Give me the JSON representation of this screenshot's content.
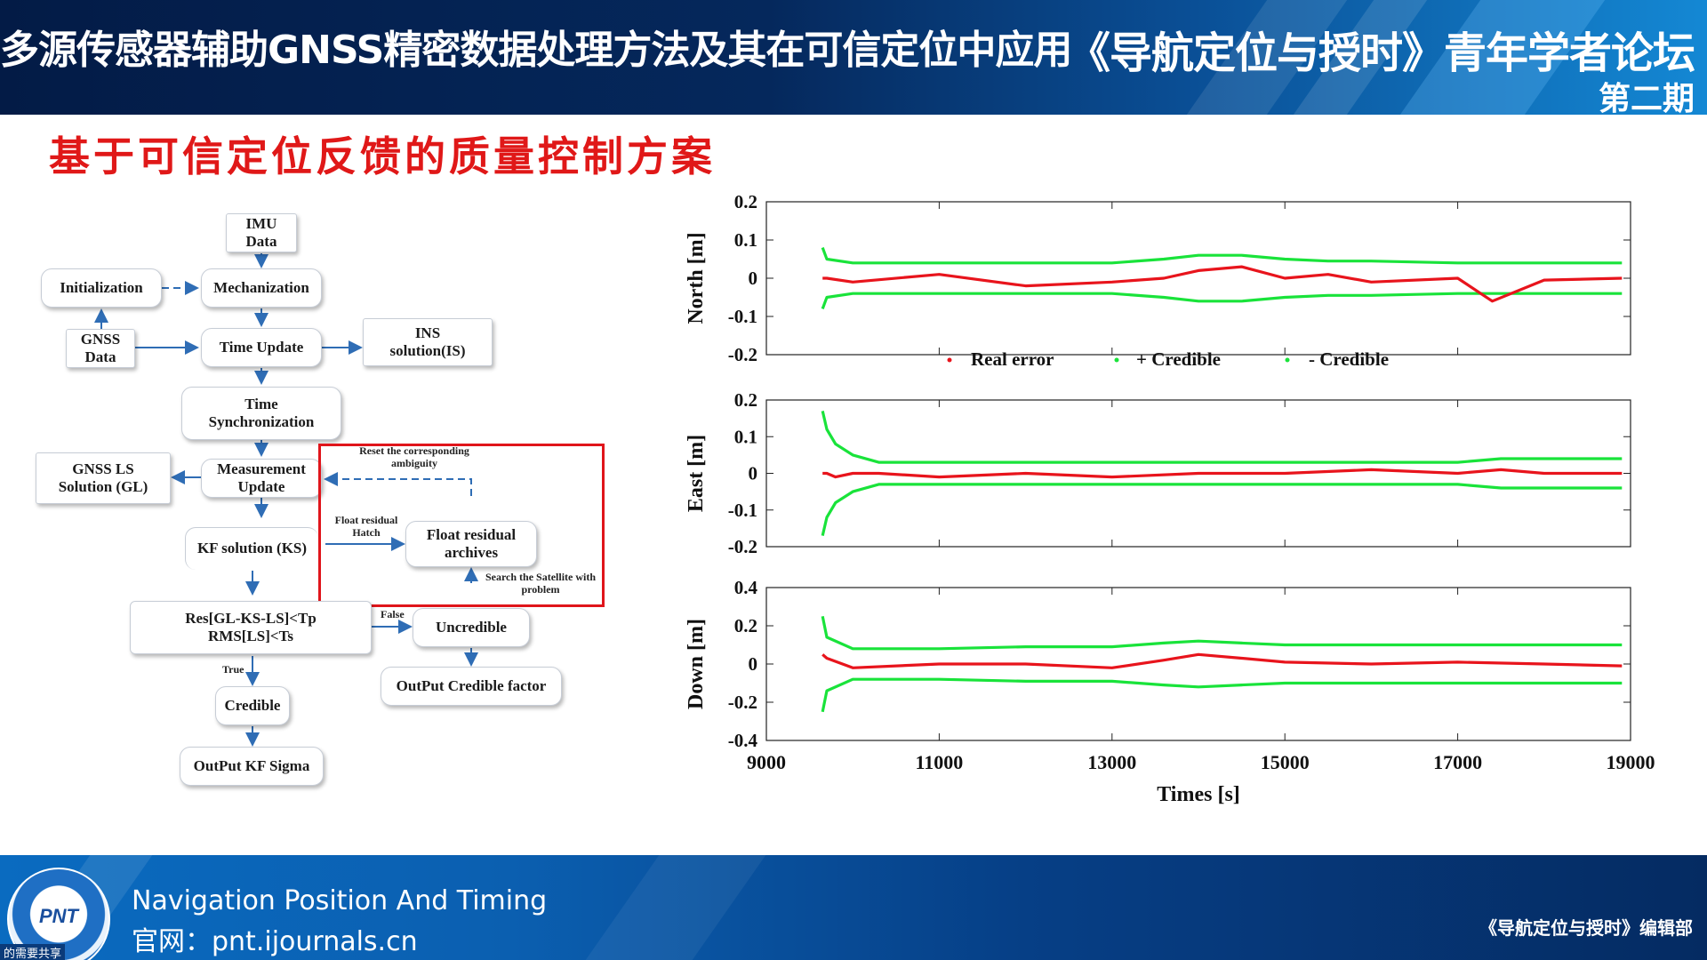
{
  "header": {
    "title": "多源传感器辅助GNSS精密数据处理方法及其在可信定位中应用",
    "forum": "《导航定位与授时》青年学者论坛",
    "issue": "第二期"
  },
  "slide": {
    "title": "基于可信定位反馈的质量控制方案"
  },
  "flowchart": {
    "imu": "IMU Data",
    "initialization": "Initialization",
    "mechanization": "Mechanization",
    "gnss_data": "GNSS Data",
    "time_update": "Time Update",
    "ins_solution": "INS solution(IS)",
    "time_sync": "Time Synchronization",
    "gnss_ls": "GNSS LS Solution (GL)",
    "measurement_update": "Measurement Update",
    "kf_solution": "KF solution (KS)",
    "float_archives": "Float residual archives",
    "float_hatch": "Float residual Hatch",
    "reset_ambiguity": "Reset the corresponding ambiguity",
    "search_satellite": "Search the Satellite with problem",
    "test": "Res[GL-KS-LS]<Tp RMS[LS]<Ts",
    "false_label": "False",
    "true_label": "True",
    "uncredible": "Uncredible",
    "output_factor": "OutPut Credible factor",
    "credible": "Credible",
    "output_sigma": "OutPut KF Sigma"
  },
  "chart_data": {
    "type": "line",
    "xlabel": "Times [s]",
    "xlim": [
      9000,
      19000
    ],
    "xticks": [
      9000,
      11000,
      13000,
      15000,
      17000,
      19000
    ],
    "xtick_labels": [
      "9000",
      "11000",
      "13000",
      "15000",
      "17000",
      "19000"
    ],
    "legend": [
      "Real error",
      "+ Credible",
      "- Credible"
    ],
    "legend_position": "between top and middle panels",
    "colors": {
      "real_error": "#e8141c",
      "credible": "#19e33a"
    },
    "grid": false,
    "panels": [
      {
        "ylabel": "North [m]",
        "ylim": [
          -0.2,
          0.2
        ],
        "yticks": [
          0.2,
          0.1,
          0,
          -0.1,
          -0.2
        ],
        "ytick_labels": [
          "0.2",
          "0.1",
          "0",
          "-0.1",
          "-0.2"
        ],
        "x": [
          9650,
          9700,
          10000,
          11000,
          12000,
          13000,
          13600,
          14000,
          14500,
          15000,
          15500,
          16000,
          17000,
          17400,
          18000,
          18900
        ],
        "real_error": [
          0.0,
          0.0,
          -0.01,
          0.01,
          -0.02,
          -0.01,
          0.0,
          0.02,
          0.03,
          0.0,
          0.01,
          -0.01,
          0.0,
          -0.06,
          -0.005,
          0.0
        ],
        "plus_credible": [
          0.08,
          0.05,
          0.04,
          0.04,
          0.04,
          0.04,
          0.05,
          0.06,
          0.06,
          0.05,
          0.045,
          0.045,
          0.04,
          0.04,
          0.04,
          0.04
        ],
        "minus_credible": [
          -0.08,
          -0.05,
          -0.04,
          -0.04,
          -0.04,
          -0.04,
          -0.05,
          -0.06,
          -0.06,
          -0.05,
          -0.045,
          -0.045,
          -0.04,
          -0.04,
          -0.04,
          -0.04
        ]
      },
      {
        "ylabel": "East [m]",
        "ylim": [
          -0.2,
          0.2
        ],
        "yticks": [
          0.2,
          0.1,
          0,
          -0.1,
          -0.2
        ],
        "ytick_labels": [
          "0.2",
          "0.1",
          "0",
          "-0.1",
          "-0.2"
        ],
        "x": [
          9650,
          9700,
          9800,
          10000,
          10300,
          11000,
          12000,
          13000,
          14000,
          15000,
          16000,
          17000,
          17500,
          18000,
          18900
        ],
        "real_error": [
          0.0,
          0.0,
          -0.01,
          0.0,
          0.0,
          -0.01,
          0.0,
          -0.01,
          0.0,
          0.0,
          0.01,
          0.0,
          0.01,
          0.0,
          0.0
        ],
        "plus_credible": [
          0.17,
          0.12,
          0.08,
          0.05,
          0.03,
          0.03,
          0.03,
          0.03,
          0.03,
          0.03,
          0.03,
          0.03,
          0.04,
          0.04,
          0.04
        ],
        "minus_credible": [
          -0.17,
          -0.12,
          -0.08,
          -0.05,
          -0.03,
          -0.03,
          -0.03,
          -0.03,
          -0.03,
          -0.03,
          -0.03,
          -0.03,
          -0.04,
          -0.04,
          -0.04
        ]
      },
      {
        "ylabel": "Down [m]",
        "ylim": [
          -0.4,
          0.4
        ],
        "yticks": [
          0.4,
          0.2,
          0,
          -0.2,
          -0.4
        ],
        "ytick_labels": [
          "0.4",
          "0.2",
          "0",
          "-0.2",
          "-0.4"
        ],
        "x": [
          9650,
          9700,
          10000,
          11000,
          12000,
          13000,
          13600,
          14000,
          14500,
          15000,
          16000,
          17000,
          18000,
          18900
        ],
        "real_error": [
          0.05,
          0.03,
          -0.02,
          0.0,
          0.0,
          -0.02,
          0.02,
          0.05,
          0.03,
          0.01,
          0.0,
          0.01,
          0.0,
          -0.01
        ],
        "plus_credible": [
          0.25,
          0.14,
          0.08,
          0.08,
          0.09,
          0.09,
          0.11,
          0.12,
          0.11,
          0.1,
          0.1,
          0.1,
          0.1,
          0.1
        ],
        "minus_credible": [
          -0.25,
          -0.14,
          -0.08,
          -0.08,
          -0.09,
          -0.09,
          -0.11,
          -0.12,
          -0.11,
          -0.1,
          -0.1,
          -0.1,
          -0.1,
          -0.1
        ]
      }
    ]
  },
  "footer": {
    "logo_text": "PNT",
    "name": "Navigation Position And Timing",
    "website": "官网：pnt.ijournals.cn",
    "dept": "《导航定位与授时》编辑部",
    "corner": "的需要共享"
  }
}
